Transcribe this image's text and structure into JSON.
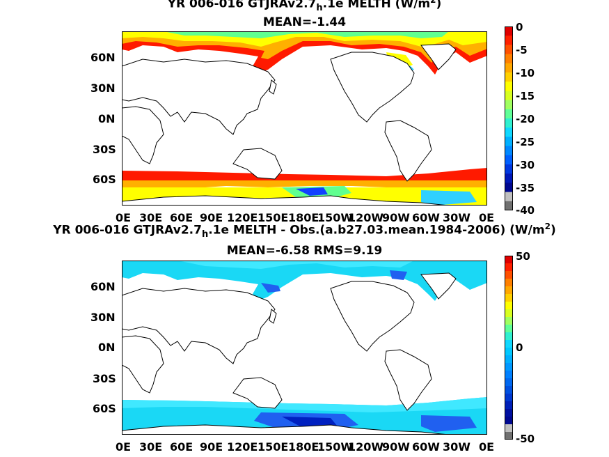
{
  "panel_top": {
    "title_pre": "YR 006-016 GTJRAv2.7",
    "title_sub": "h",
    "title_mid": ".1e  MELTH (W/m",
    "title_sup": "2",
    "title_post": ")",
    "stats": "MEAN=-1.44",
    "colorbar_labels": [
      "0",
      "-5",
      "-10",
      "-15",
      "-20",
      "-25",
      "-30",
      "-35",
      "-40"
    ]
  },
  "panel_bottom": {
    "title_pre": "YR 006-016 GTJRAv2.7",
    "title_sub": "h",
    "title_mid": ".1e MELTH - Obs.(a.b27.03.mean.1984-2006) (W/m",
    "title_sup": "2",
    "title_post": ")",
    "stats": "MEAN=-6.58 RMS=9.19",
    "colorbar_labels": [
      "50",
      "0",
      "-50"
    ]
  },
  "lat_labels": [
    "60N",
    "30N",
    "0N",
    "30S",
    "60S"
  ],
  "lon_labels": [
    "0E",
    "30E",
    "60E",
    "90E",
    "120E",
    "150E",
    "180E",
    "150W",
    "120W",
    "90W",
    "60W",
    "30W",
    "0E"
  ],
  "colors": {
    "land": "#ffffff",
    "top_ice_edge": "#ff1a00",
    "top_ice_mid": "#ffb000",
    "top_ice_inner": "#ffff00",
    "top_ice_green": "#60ff90",
    "top_ice_cyan": "#30d0ff",
    "bottom_ice": "#1ad8f5",
    "bottom_ice_light": "#40e8ff",
    "bottom_ice_blue": "#2060f0",
    "bottom_ice_dark": "#0020c0"
  }
}
